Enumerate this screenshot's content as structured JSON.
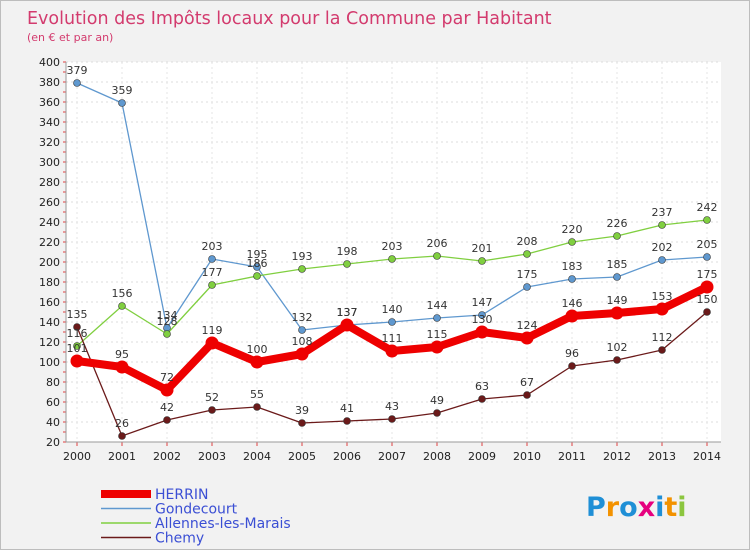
{
  "chart_data": {
    "type": "line",
    "title": "Evolution des Impôts locaux pour la Commune par Habitant",
    "subtitle": "(en € et par an)",
    "x": [
      "2000",
      "2001",
      "2002",
      "2003",
      "2004",
      "2005",
      "2006",
      "2007",
      "2008",
      "2009",
      "2010",
      "2011",
      "2012",
      "2013",
      "2014"
    ],
    "ylim": [
      20,
      400
    ],
    "yticks": [
      20,
      40,
      60,
      80,
      100,
      120,
      140,
      160,
      180,
      200,
      220,
      240,
      260,
      280,
      300,
      320,
      340,
      360,
      380,
      400
    ],
    "series": [
      {
        "name": "HERRIN",
        "color": "#ee0000",
        "values": [
          101,
          95,
          72,
          119,
          100,
          108,
          137,
          111,
          115,
          130,
          124,
          146,
          149,
          153,
          175
        ]
      },
      {
        "name": "Gondecourt",
        "color": "#5f98cf",
        "values": [
          379,
          359,
          134,
          203,
          195,
          132,
          137,
          140,
          144,
          147,
          175,
          183,
          185,
          202,
          205
        ]
      },
      {
        "name": "Allennes-les-Marais",
        "color": "#80cf40",
        "values": [
          116,
          156,
          128,
          177,
          186,
          193,
          198,
          203,
          206,
          201,
          208,
          220,
          226,
          237,
          242
        ]
      },
      {
        "name": "Chemy",
        "color": "#6b1a1a",
        "values": [
          135,
          26,
          42,
          52,
          55,
          39,
          41,
          43,
          49,
          63,
          67,
          96,
          102,
          112,
          150
        ]
      }
    ]
  },
  "logo": {
    "text": "Proxiti",
    "letters": [
      "P",
      "r",
      "o",
      "x",
      "i",
      "t",
      "i"
    ],
    "colors": [
      "#1f8fd6",
      "#f39200",
      "#1f8fd6",
      "#e6007e",
      "#1f8fd6",
      "#f39200",
      "#8cc63f"
    ]
  }
}
